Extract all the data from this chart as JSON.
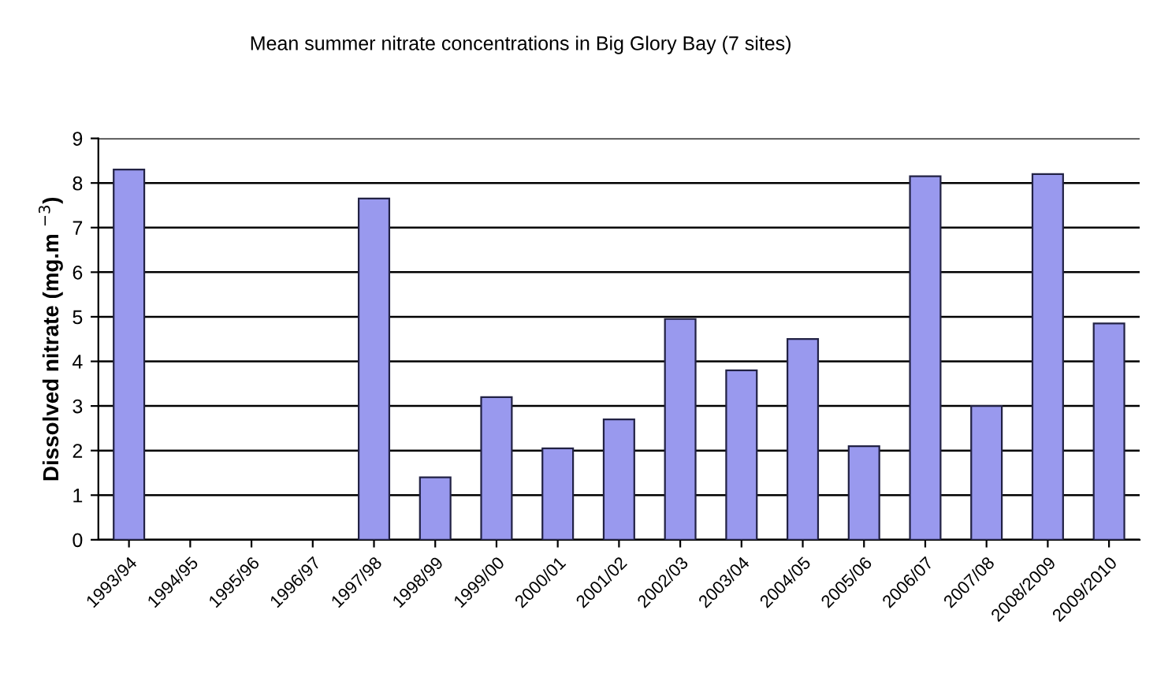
{
  "chart_data": {
    "type": "bar",
    "title": "Mean summer nitrate concentrations in Big Glory Bay (7 sites)",
    "ylabel": "Dissolved nitrate (mg.m $^{−3}$)",
    "categories": [
      "1993/94",
      "1994/95",
      "1995/96",
      "1996/97",
      "1997/98",
      "1998/99",
      "1999/00",
      "2000/01",
      "2001/02",
      "2002/03",
      "2003/04",
      "2004/05",
      "2005/06",
      "2006/07",
      "2007/08",
      "2008/2009",
      "2009/2010"
    ],
    "values": [
      8.3,
      null,
      null,
      null,
      7.65,
      1.4,
      3.2,
      2.05,
      2.7,
      4.95,
      3.8,
      4.5,
      2.1,
      8.15,
      3.0,
      8.2,
      4.85
    ],
    "color": "#9999ee",
    "ylim": [
      0,
      9
    ],
    "yticks": [
      0,
      1,
      2,
      3,
      4,
      5,
      6,
      7,
      8,
      9
    ],
    "grid": "y"
  }
}
